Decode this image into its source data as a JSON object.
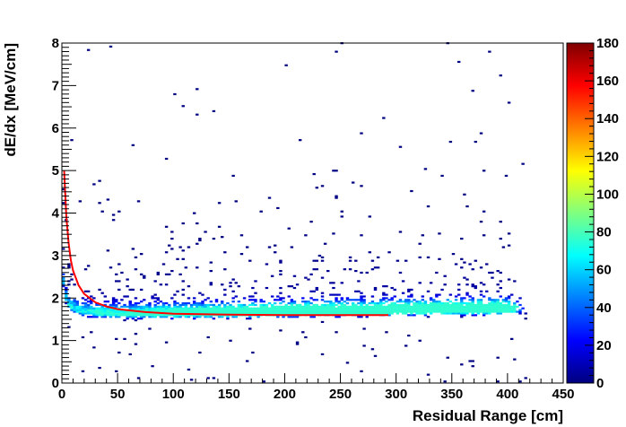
{
  "chart_data": {
    "type": "heatmap",
    "title": "",
    "xlabel": "Residual Range [cm]",
    "ylabel": "dE/dx [MeV/cm]",
    "xlim": [
      0,
      450
    ],
    "ylim": [
      0,
      8
    ],
    "x_ticks": [
      "0",
      "50",
      "100",
      "150",
      "200",
      "250",
      "300",
      "350",
      "400",
      "450"
    ],
    "y_ticks": [
      "0",
      "1",
      "2",
      "3",
      "4",
      "5",
      "6",
      "7",
      "8"
    ],
    "colorbar": {
      "range": [
        0,
        180
      ],
      "ticks": [
        "0",
        "20",
        "40",
        "60",
        "80",
        "100",
        "120",
        "140",
        "160",
        "180"
      ],
      "palette": [
        "#00007f",
        "#0000ff",
        "#007fff",
        "#00ffff",
        "#7fff7f",
        "#ffff00",
        "#ff7f00",
        "#ff0000",
        "#7f0000"
      ]
    },
    "density_band": {
      "x_range": [
        0,
        420
      ],
      "peak_y": 1.6,
      "sparse_y_max": 8,
      "max_count": 180
    },
    "fit_curve": {
      "name": "",
      "color": "#ff0000",
      "x": [
        2,
        4,
        6,
        8,
        10,
        15,
        20,
        30,
        40,
        50,
        75,
        100,
        150,
        200,
        250,
        293
      ],
      "y": [
        5.0,
        3.9,
        3.3,
        2.9,
        2.65,
        2.3,
        2.1,
        1.9,
        1.8,
        1.74,
        1.67,
        1.63,
        1.61,
        1.6,
        1.6,
        1.6
      ]
    }
  }
}
